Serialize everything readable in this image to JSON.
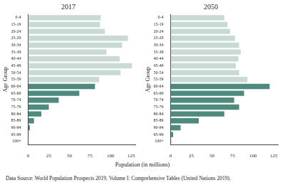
{
  "chart_data": [
    {
      "type": "bar",
      "title": "2017",
      "ylabel": "Age Group",
      "orientation": "horizontal",
      "grid": false,
      "categories": [
        "0-4",
        "15-19",
        "20-24",
        "25-29",
        "30-34",
        "35-39",
        "40-44",
        "45-49",
        "50-54",
        "55-59",
        "60-64",
        "65-69",
        "70-74",
        "75-79",
        "80-84",
        "85-89",
        "90-94",
        "95-99",
        "100+"
      ],
      "values": [
        88,
        87,
        93,
        121,
        114,
        95,
        111,
        126,
        112,
        86,
        81,
        62,
        37,
        25,
        16,
        7,
        2,
        0.5,
        0.1
      ],
      "colors": [
        "#c9dad4",
        "#c9dad4",
        "#c9dad4",
        "#c9dad4",
        "#c9dad4",
        "#c9dad4",
        "#c9dad4",
        "#c9dad4",
        "#c9dad4",
        "#c9dad4",
        "#4e8a7d",
        "#4e8a7d",
        "#4e8a7d",
        "#4e8a7d",
        "#4e8a7d",
        "#4e8a7d",
        "#4e8a7d",
        "#4e8a7d",
        "#4e8a7d"
      ],
      "xlim": [
        0,
        130
      ],
      "xticks": [
        0,
        25,
        50,
        75,
        100,
        125
      ]
    },
    {
      "type": "bar",
      "title": "2050",
      "ylabel": "Age Group",
      "orientation": "horizontal",
      "grid": false,
      "categories": [
        "0-4",
        "15-19",
        "20-24",
        "25-29",
        "30-34",
        "35-39",
        "40-44",
        "45-49",
        "50-54",
        "55-59",
        "60-64",
        "65-69",
        "70-74",
        "75-79",
        "80-84",
        "85-89",
        "90-94",
        "95-99",
        "100+"
      ],
      "values": [
        65,
        69,
        72,
        78,
        83,
        85,
        82,
        79,
        83,
        93,
        120,
        89,
        77,
        83,
        65,
        34,
        12,
        3,
        0.5
      ],
      "colors": [
        "#c9dad4",
        "#c9dad4",
        "#c9dad4",
        "#c9dad4",
        "#c9dad4",
        "#c9dad4",
        "#c9dad4",
        "#c9dad4",
        "#c9dad4",
        "#c9dad4",
        "#4e8a7d",
        "#4e8a7d",
        "#4e8a7d",
        "#4e8a7d",
        "#4e8a7d",
        "#4e8a7d",
        "#4e8a7d",
        "#4e8a7d",
        "#4e8a7d"
      ],
      "xlim": [
        0,
        130
      ],
      "xticks": [
        0,
        25,
        50,
        75,
        100,
        125
      ]
    }
  ],
  "xlabel": "Population (in millions)",
  "caption": "Data Source: World Population Prospects 2019, Volume I: Comprehensive Tables (United Nations 2019)."
}
